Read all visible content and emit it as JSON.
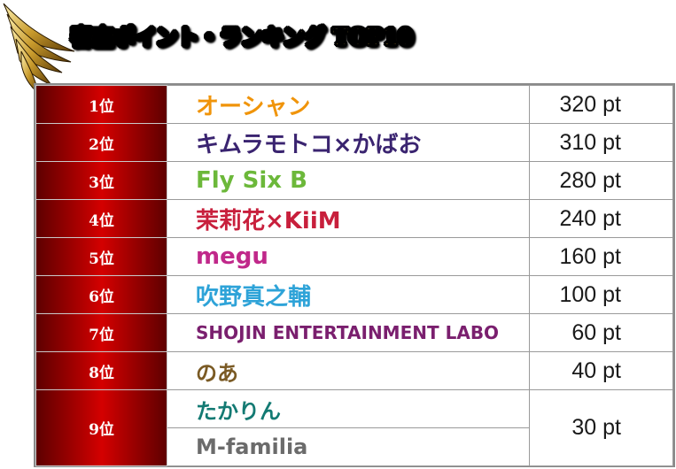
{
  "header": {
    "title": "審査ポイント・ランキング TOP10",
    "icon": "golden-wing-icon"
  },
  "rows": [
    {
      "rank": "1位",
      "name": "オーシャン",
      "name_color": "#f0940a",
      "points": "320 pt"
    },
    {
      "rank": "2位",
      "name": "キムラモトコ×かばお",
      "name_color": "#3a2470",
      "points": "310 pt"
    },
    {
      "rank": "3位",
      "name": "Fly Six B",
      "name_color": "#6cb83a",
      "points": "280 pt"
    },
    {
      "rank": "4位",
      "name": "茉莉花×KiiM",
      "name_color": "#c81f3c",
      "points": "240 pt"
    },
    {
      "rank": "5位",
      "name": "megu",
      "name_color": "#c0288a",
      "points": "160 pt"
    },
    {
      "rank": "6位",
      "name": "吹野真之輔",
      "name_color": "#2ea3d8",
      "points": "100 pt"
    },
    {
      "rank": "7位",
      "name": "SHOJIN ENTERTAINMENT LABO",
      "name_color": "#7a1f6e",
      "points": "60 pt"
    },
    {
      "rank": "8位",
      "name": "のあ",
      "name_color": "#7a5a24",
      "points": "40 pt"
    }
  ],
  "tie": {
    "rank": "9位",
    "points": "30 pt",
    "names": [
      {
        "name": "たかりん",
        "name_color": "#137a73"
      },
      {
        "name": "M-familia",
        "name_color": "#6b6b6b"
      }
    ]
  }
}
